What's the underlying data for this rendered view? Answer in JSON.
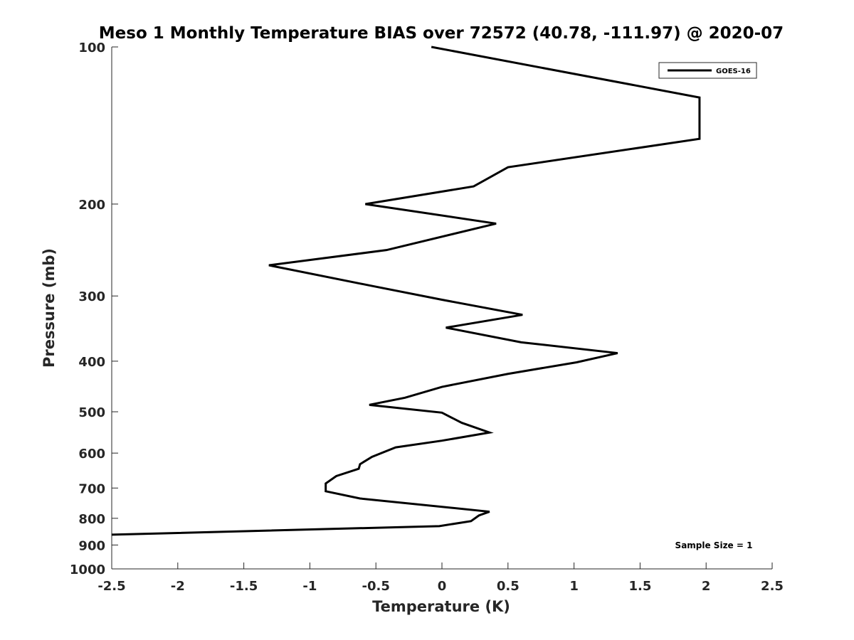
{
  "chart_data": {
    "type": "line",
    "title": "Meso 1 Monthly Temperature BIAS over 72572 (40.78, -111.97) @ 2020-07",
    "xlabel": "Temperature (K)",
    "ylabel": "Pressure (mb)",
    "xlim": [
      -2.5,
      2.5
    ],
    "ylim": [
      100,
      1000
    ],
    "y_scale": "log",
    "y_reversed": true,
    "xticks": [
      -2.5,
      -2,
      -1.5,
      -1,
      -0.5,
      0,
      0.5,
      1,
      1.5,
      2,
      2.5
    ],
    "xtick_labels": [
      "-2.5",
      "-2",
      "-1.5",
      "-1",
      "-0.5",
      "0",
      "0.5",
      "1",
      "1.5",
      "2",
      "2.5"
    ],
    "yticks": [
      100,
      200,
      300,
      400,
      500,
      600,
      700,
      800,
      900,
      1000
    ],
    "ytick_labels": [
      "100",
      "200",
      "300",
      "400",
      "500",
      "600",
      "700",
      "800",
      "900",
      "1000"
    ],
    "grid": false,
    "legend_position": "top-right",
    "annotation": "Sample Size = 1",
    "series": [
      {
        "name": "GOES-16",
        "color": "#000000",
        "points": [
          [
            -0.08,
            100
          ],
          [
            1.95,
            125
          ],
          [
            1.95,
            150
          ],
          [
            0.5,
            170
          ],
          [
            0.24,
            185
          ],
          [
            -0.58,
            200
          ],
          [
            0.41,
            218
          ],
          [
            -0.42,
            245
          ],
          [
            -1.31,
            262
          ],
          [
            -0.53,
            287
          ],
          [
            0,
            305
          ],
          [
            0.61,
            326
          ],
          [
            0.03,
            345
          ],
          [
            0.6,
            368
          ],
          [
            1.33,
            386
          ],
          [
            1.02,
            402
          ],
          [
            0.5,
            423
          ],
          [
            0,
            448
          ],
          [
            -0.28,
            470
          ],
          [
            -0.55,
            485
          ],
          [
            0,
            502
          ],
          [
            0.15,
            525
          ],
          [
            0.36,
            548
          ],
          [
            0,
            568
          ],
          [
            -0.35,
            585
          ],
          [
            -0.53,
            610
          ],
          [
            -0.62,
            630
          ],
          [
            -0.63,
            643
          ],
          [
            -0.8,
            664
          ],
          [
            -0.88,
            686
          ],
          [
            -0.88,
            710
          ],
          [
            -0.62,
            733
          ],
          [
            0.36,
            777
          ],
          [
            0.28,
            790
          ],
          [
            0.22,
            810
          ],
          [
            -0.02,
            828
          ],
          [
            -2.5,
            860
          ]
        ]
      }
    ]
  }
}
